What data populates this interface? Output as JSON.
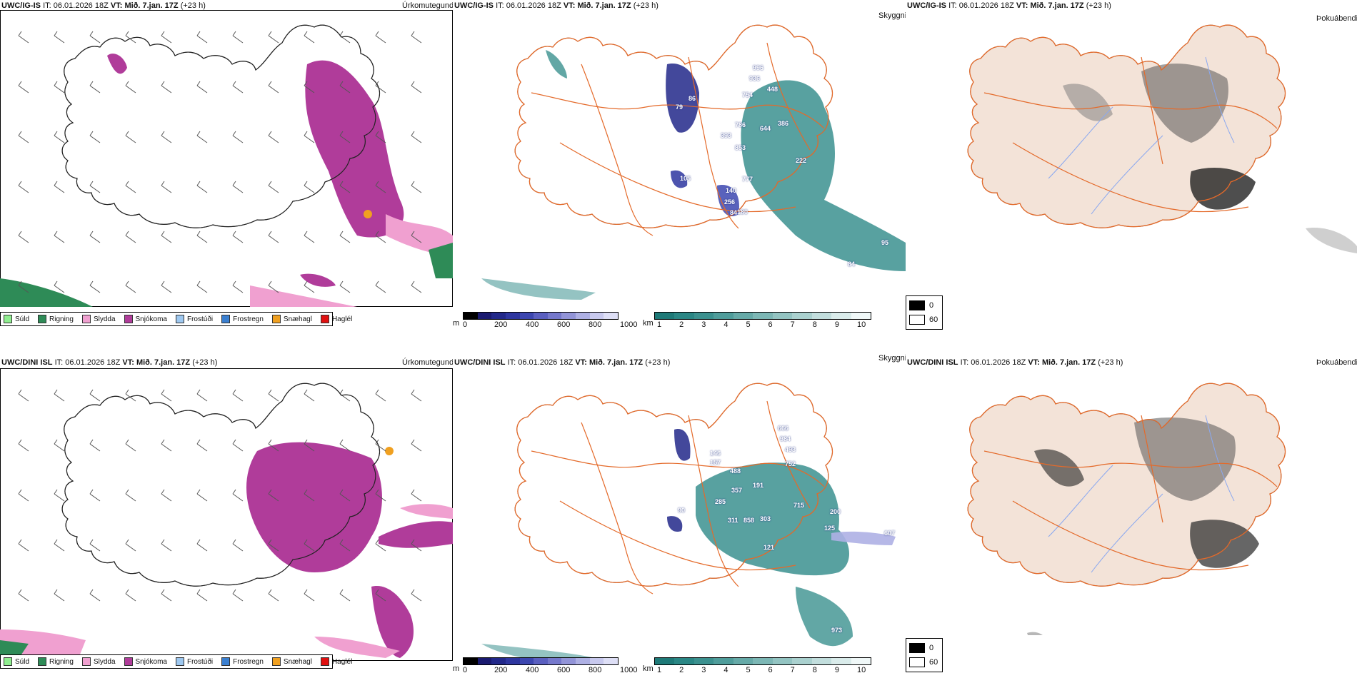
{
  "rows": [
    {
      "model": "UWC/IG-IS",
      "it_label": "IT:",
      "it_value": "06.01.2026 18Z",
      "vt_label": "VT:",
      "vt_value": "Mið. 7.jan. 17Z",
      "lead": "(+23 h)"
    },
    {
      "model": "UWC/DINI ISL",
      "it_label": "IT:",
      "it_value": "06.01.2026 18Z",
      "vt_label": "VT:",
      "vt_value": "Mið. 7.jan. 17Z",
      "lead": "(+23 h)"
    }
  ],
  "panels": {
    "precip_type": "Úrkomutegund",
    "visibility": "Skyggni",
    "fog": "Þokuábendi"
  },
  "precip_legend": [
    {
      "label": "Súld",
      "color": "#90ee90"
    },
    {
      "label": "Rigning",
      "color": "#2e8b57"
    },
    {
      "label": "Slydda",
      "color": "#f0a0d0"
    },
    {
      "label": "Snjókoma",
      "color": "#b03c9a"
    },
    {
      "label": "Frostúði",
      "color": "#9ec8f0"
    },
    {
      "label": "Frostregn",
      "color": "#3a7fd0"
    },
    {
      "label": "Snæhagl",
      "color": "#f0a020"
    },
    {
      "label": "Haglél",
      "color": "#e01010"
    }
  ],
  "ceiling_scale": {
    "unit": "m",
    "ticks": [
      "0",
      "200",
      "400",
      "600",
      "800",
      "1000"
    ],
    "colors": [
      "#000000",
      "#1a1a70",
      "#22288a",
      "#2e36a0",
      "#3c46b0",
      "#5a5fc0",
      "#7578cc",
      "#9294d8",
      "#aeb0e4",
      "#c8c9ee",
      "#dedff6"
    ]
  },
  "vis_scale": {
    "unit": "km",
    "ticks": [
      "1",
      "2",
      "3",
      "4",
      "5",
      "6",
      "7",
      "8",
      "9",
      "10"
    ],
    "colors": [
      "#1e7a78",
      "#2a8785",
      "#3b918f",
      "#4f9d9b",
      "#66aaa8",
      "#7cb7b5",
      "#93c4c2",
      "#aad1cf",
      "#c2dedd",
      "#daeceb",
      "#f0f8f8"
    ]
  },
  "fog_legend": {
    "high": "0",
    "low": "60"
  },
  "ceiling_labels_top": [
    "996",
    "936",
    "448",
    "754",
    "79",
    "86",
    "786",
    "644",
    "386",
    "393",
    "853",
    "777",
    "105",
    "140",
    "256",
    "180",
    "84",
    "222",
    "95",
    "84"
  ],
  "ceiling_labels_bottom": [
    "666",
    "984",
    "493",
    "752",
    "488",
    "357",
    "191",
    "285",
    "311",
    "858",
    "303",
    "715",
    "200",
    "125",
    "121",
    "90",
    "973",
    "607",
    "146",
    "157"
  ],
  "colors": {
    "snow": "#b03c9a",
    "sleet": "#f0a0d0",
    "rain": "#2e8b57",
    "ice_pellet": "#f0a020",
    "teal_vis": "#3b918f",
    "land_fog": "#f3e3d8",
    "roads": "#e46a2a",
    "rivers": "#8aa8f0"
  },
  "icons": {
    "coast": "iceland-coastline",
    "wind": "wind-barb",
    "roads": "road-network"
  }
}
